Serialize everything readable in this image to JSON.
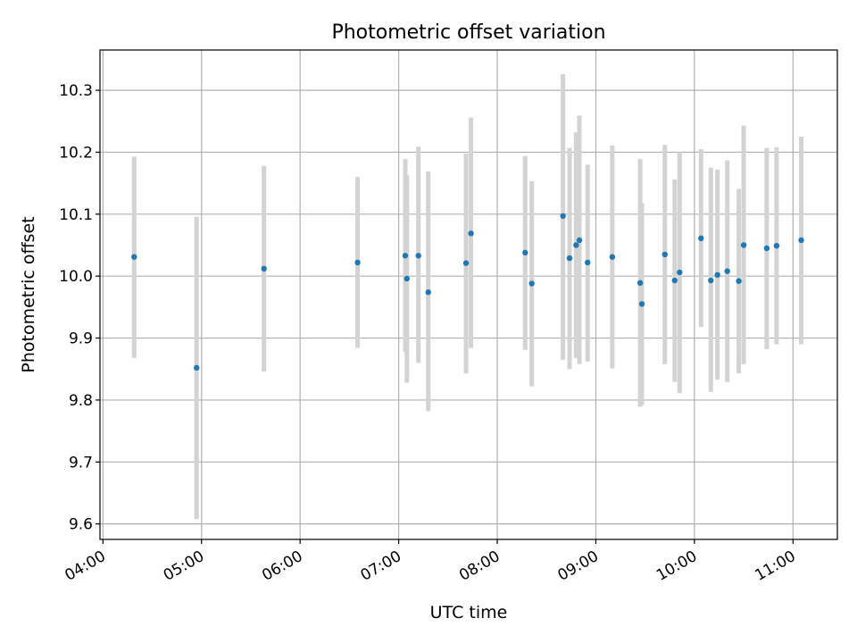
{
  "chart_data": {
    "type": "scatter",
    "title": "Photometric offset variation",
    "xlabel": "UTC time",
    "ylabel": "Photometric offset",
    "x_ticks": [
      "04:00",
      "05:00",
      "06:00",
      "07:00",
      "08:00",
      "09:00",
      "10:00",
      "11:00"
    ],
    "x_tick_hours": [
      4,
      5,
      6,
      7,
      8,
      9,
      10,
      11
    ],
    "y_ticks": [
      "9.6",
      "9.7",
      "9.8",
      "9.9",
      "10.0",
      "10.1",
      "10.2",
      "10.3"
    ],
    "y_tick_values": [
      9.6,
      9.7,
      9.8,
      9.9,
      10.0,
      10.1,
      10.2,
      10.3
    ],
    "xlim_hours": [
      3.97,
      11.45
    ],
    "ylim": [
      9.575,
      10.365
    ],
    "grid": true,
    "point_color": "#1f77b4",
    "errorbar_color": "#d3d3d3",
    "points": [
      {
        "x": "04:19",
        "y": 10.031,
        "ylo": 9.868,
        "yhi": 10.193
      },
      {
        "x": "04:57",
        "y": 9.852,
        "ylo": 9.608,
        "yhi": 10.096
      },
      {
        "x": "05:38",
        "y": 10.012,
        "ylo": 9.846,
        "yhi": 10.178
      },
      {
        "x": "06:35",
        "y": 10.022,
        "ylo": 9.884,
        "yhi": 10.16
      },
      {
        "x": "07:04",
        "y": 10.033,
        "ylo": 9.878,
        "yhi": 10.189
      },
      {
        "x": "07:05",
        "y": 9.996,
        "ylo": 9.828,
        "yhi": 10.163
      },
      {
        "x": "07:12",
        "y": 10.033,
        "ylo": 9.86,
        "yhi": 10.209
      },
      {
        "x": "07:18",
        "y": 9.974,
        "ylo": 9.782,
        "yhi": 10.169
      },
      {
        "x": "07:41",
        "y": 10.021,
        "ylo": 9.843,
        "yhi": 10.198
      },
      {
        "x": "07:44",
        "y": 10.069,
        "ylo": 9.884,
        "yhi": 10.256
      },
      {
        "x": "08:17",
        "y": 10.038,
        "ylo": 9.881,
        "yhi": 10.194
      },
      {
        "x": "08:21",
        "y": 9.988,
        "ylo": 9.822,
        "yhi": 10.153
      },
      {
        "x": "08:40",
        "y": 10.097,
        "ylo": 9.865,
        "yhi": 10.326
      },
      {
        "x": "08:44",
        "y": 10.029,
        "ylo": 9.85,
        "yhi": 10.207
      },
      {
        "x": "08:48",
        "y": 10.05,
        "ylo": 9.868,
        "yhi": 10.232
      },
      {
        "x": "08:50",
        "y": 10.058,
        "ylo": 9.858,
        "yhi": 10.259
      },
      {
        "x": "08:55",
        "y": 10.022,
        "ylo": 9.862,
        "yhi": 10.18
      },
      {
        "x": "09:10",
        "y": 10.031,
        "ylo": 9.851,
        "yhi": 10.211
      },
      {
        "x": "09:27",
        "y": 9.989,
        "ylo": 9.789,
        "yhi": 10.189
      },
      {
        "x": "09:28",
        "y": 9.955,
        "ylo": 9.792,
        "yhi": 10.118
      },
      {
        "x": "09:42",
        "y": 10.035,
        "ylo": 9.858,
        "yhi": 10.212
      },
      {
        "x": "09:48",
        "y": 9.993,
        "ylo": 9.829,
        "yhi": 10.156
      },
      {
        "x": "09:51",
        "y": 10.006,
        "ylo": 9.811,
        "yhi": 10.2
      },
      {
        "x": "10:04",
        "y": 10.061,
        "ylo": 9.918,
        "yhi": 10.205
      },
      {
        "x": "10:10",
        "y": 9.993,
        "ylo": 9.813,
        "yhi": 10.175
      },
      {
        "x": "10:14",
        "y": 10.002,
        "ylo": 9.833,
        "yhi": 10.172
      },
      {
        "x": "10:20",
        "y": 10.008,
        "ylo": 9.829,
        "yhi": 10.187
      },
      {
        "x": "10:27",
        "y": 9.992,
        "ylo": 9.843,
        "yhi": 10.141
      },
      {
        "x": "10:30",
        "y": 10.05,
        "ylo": 9.858,
        "yhi": 10.243
      },
      {
        "x": "10:44",
        "y": 10.045,
        "ylo": 9.882,
        "yhi": 10.207
      },
      {
        "x": "10:50",
        "y": 10.049,
        "ylo": 9.89,
        "yhi": 10.208
      },
      {
        "x": "11:05",
        "y": 10.058,
        "ylo": 9.89,
        "yhi": 10.225
      }
    ]
  }
}
